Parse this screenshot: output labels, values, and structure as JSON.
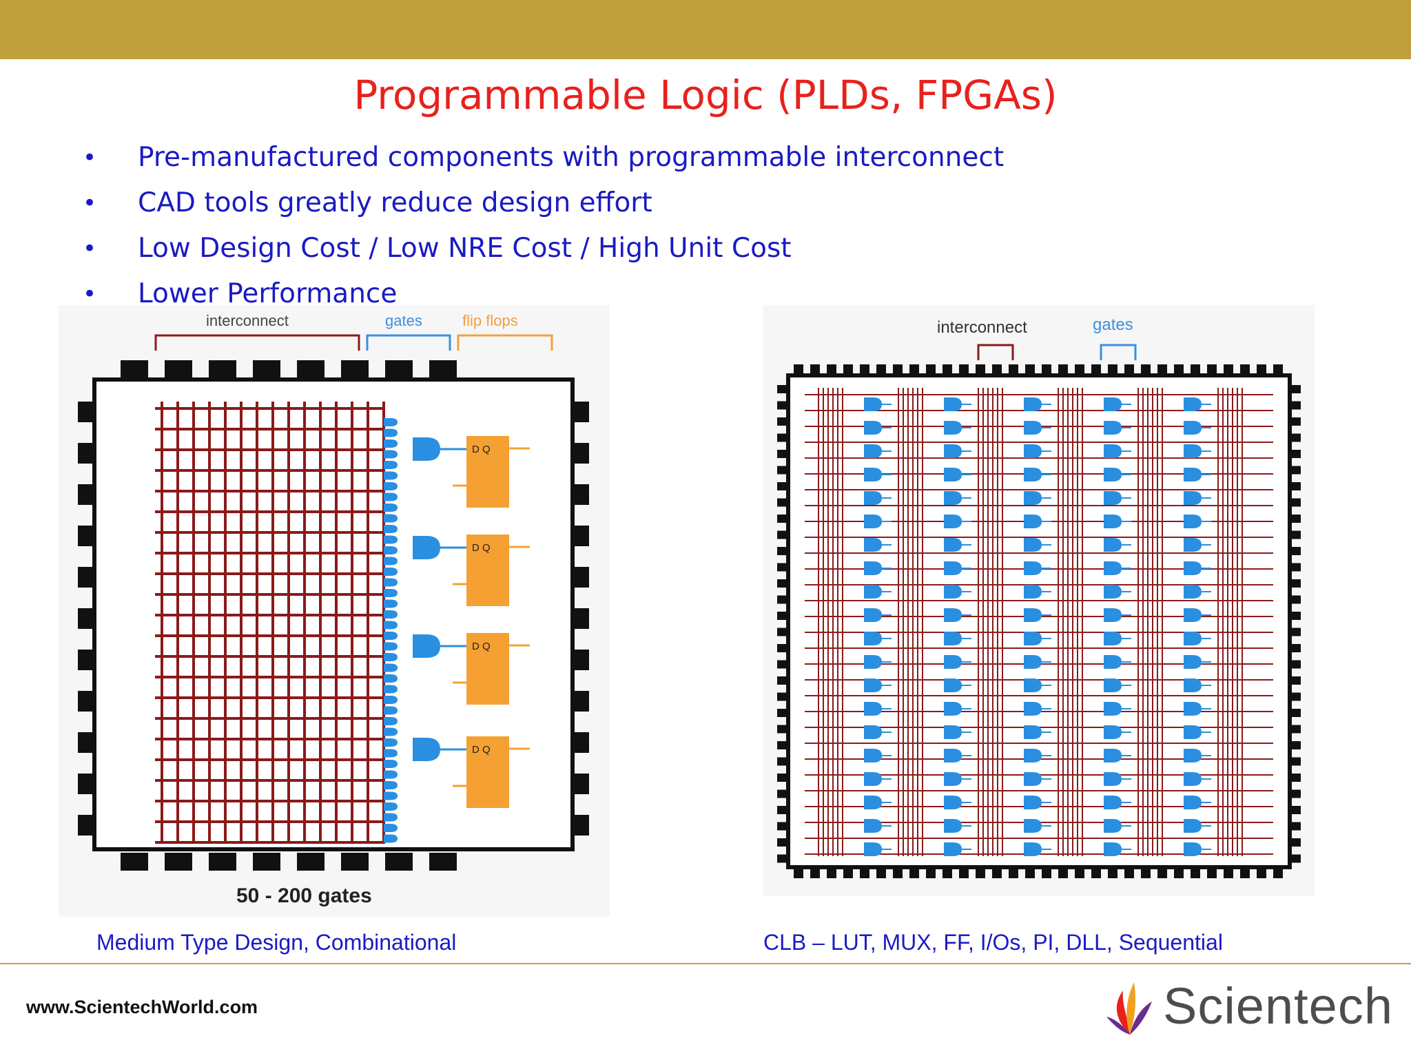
{
  "slide": {
    "title": "Programmable Logic (PLDs, FPGAs)",
    "bullets": [
      "Pre-manufactured components with programmable interconnect",
      "CAD tools greatly reduce design effort",
      "Low Design Cost / Low NRE Cost / High Unit Cost",
      "Lower Performance"
    ],
    "bullet_symbol": "•"
  },
  "figure_left": {
    "labels": {
      "interconnect": "interconnect",
      "gates": "gates",
      "flip_flops": "flip flops"
    },
    "footer": "50 - 200 gates",
    "flipflop_pins": "D  Q",
    "caption": "Medium Type Design, Combinational"
  },
  "figure_right": {
    "labels": {
      "interconnect": "interconnect",
      "gates": "gates"
    },
    "caption": "CLB – LUT, MUX, FF, I/Os, PI, DLL, Sequential"
  },
  "footer": {
    "url": "www.ScientechWorld.com",
    "logo_text": "Scientech"
  },
  "colors": {
    "top_bar": "#c0a03c",
    "title": "#e8211d",
    "text": "#1a1ac4",
    "wire": "#8b1a1a",
    "gate": "#2a8fe0",
    "flipflop": "#f5a033",
    "interconnect_bracket": "#8b1a1a",
    "gates_bracket": "#3a8fe0",
    "flipflops_bracket": "#f0a040"
  }
}
